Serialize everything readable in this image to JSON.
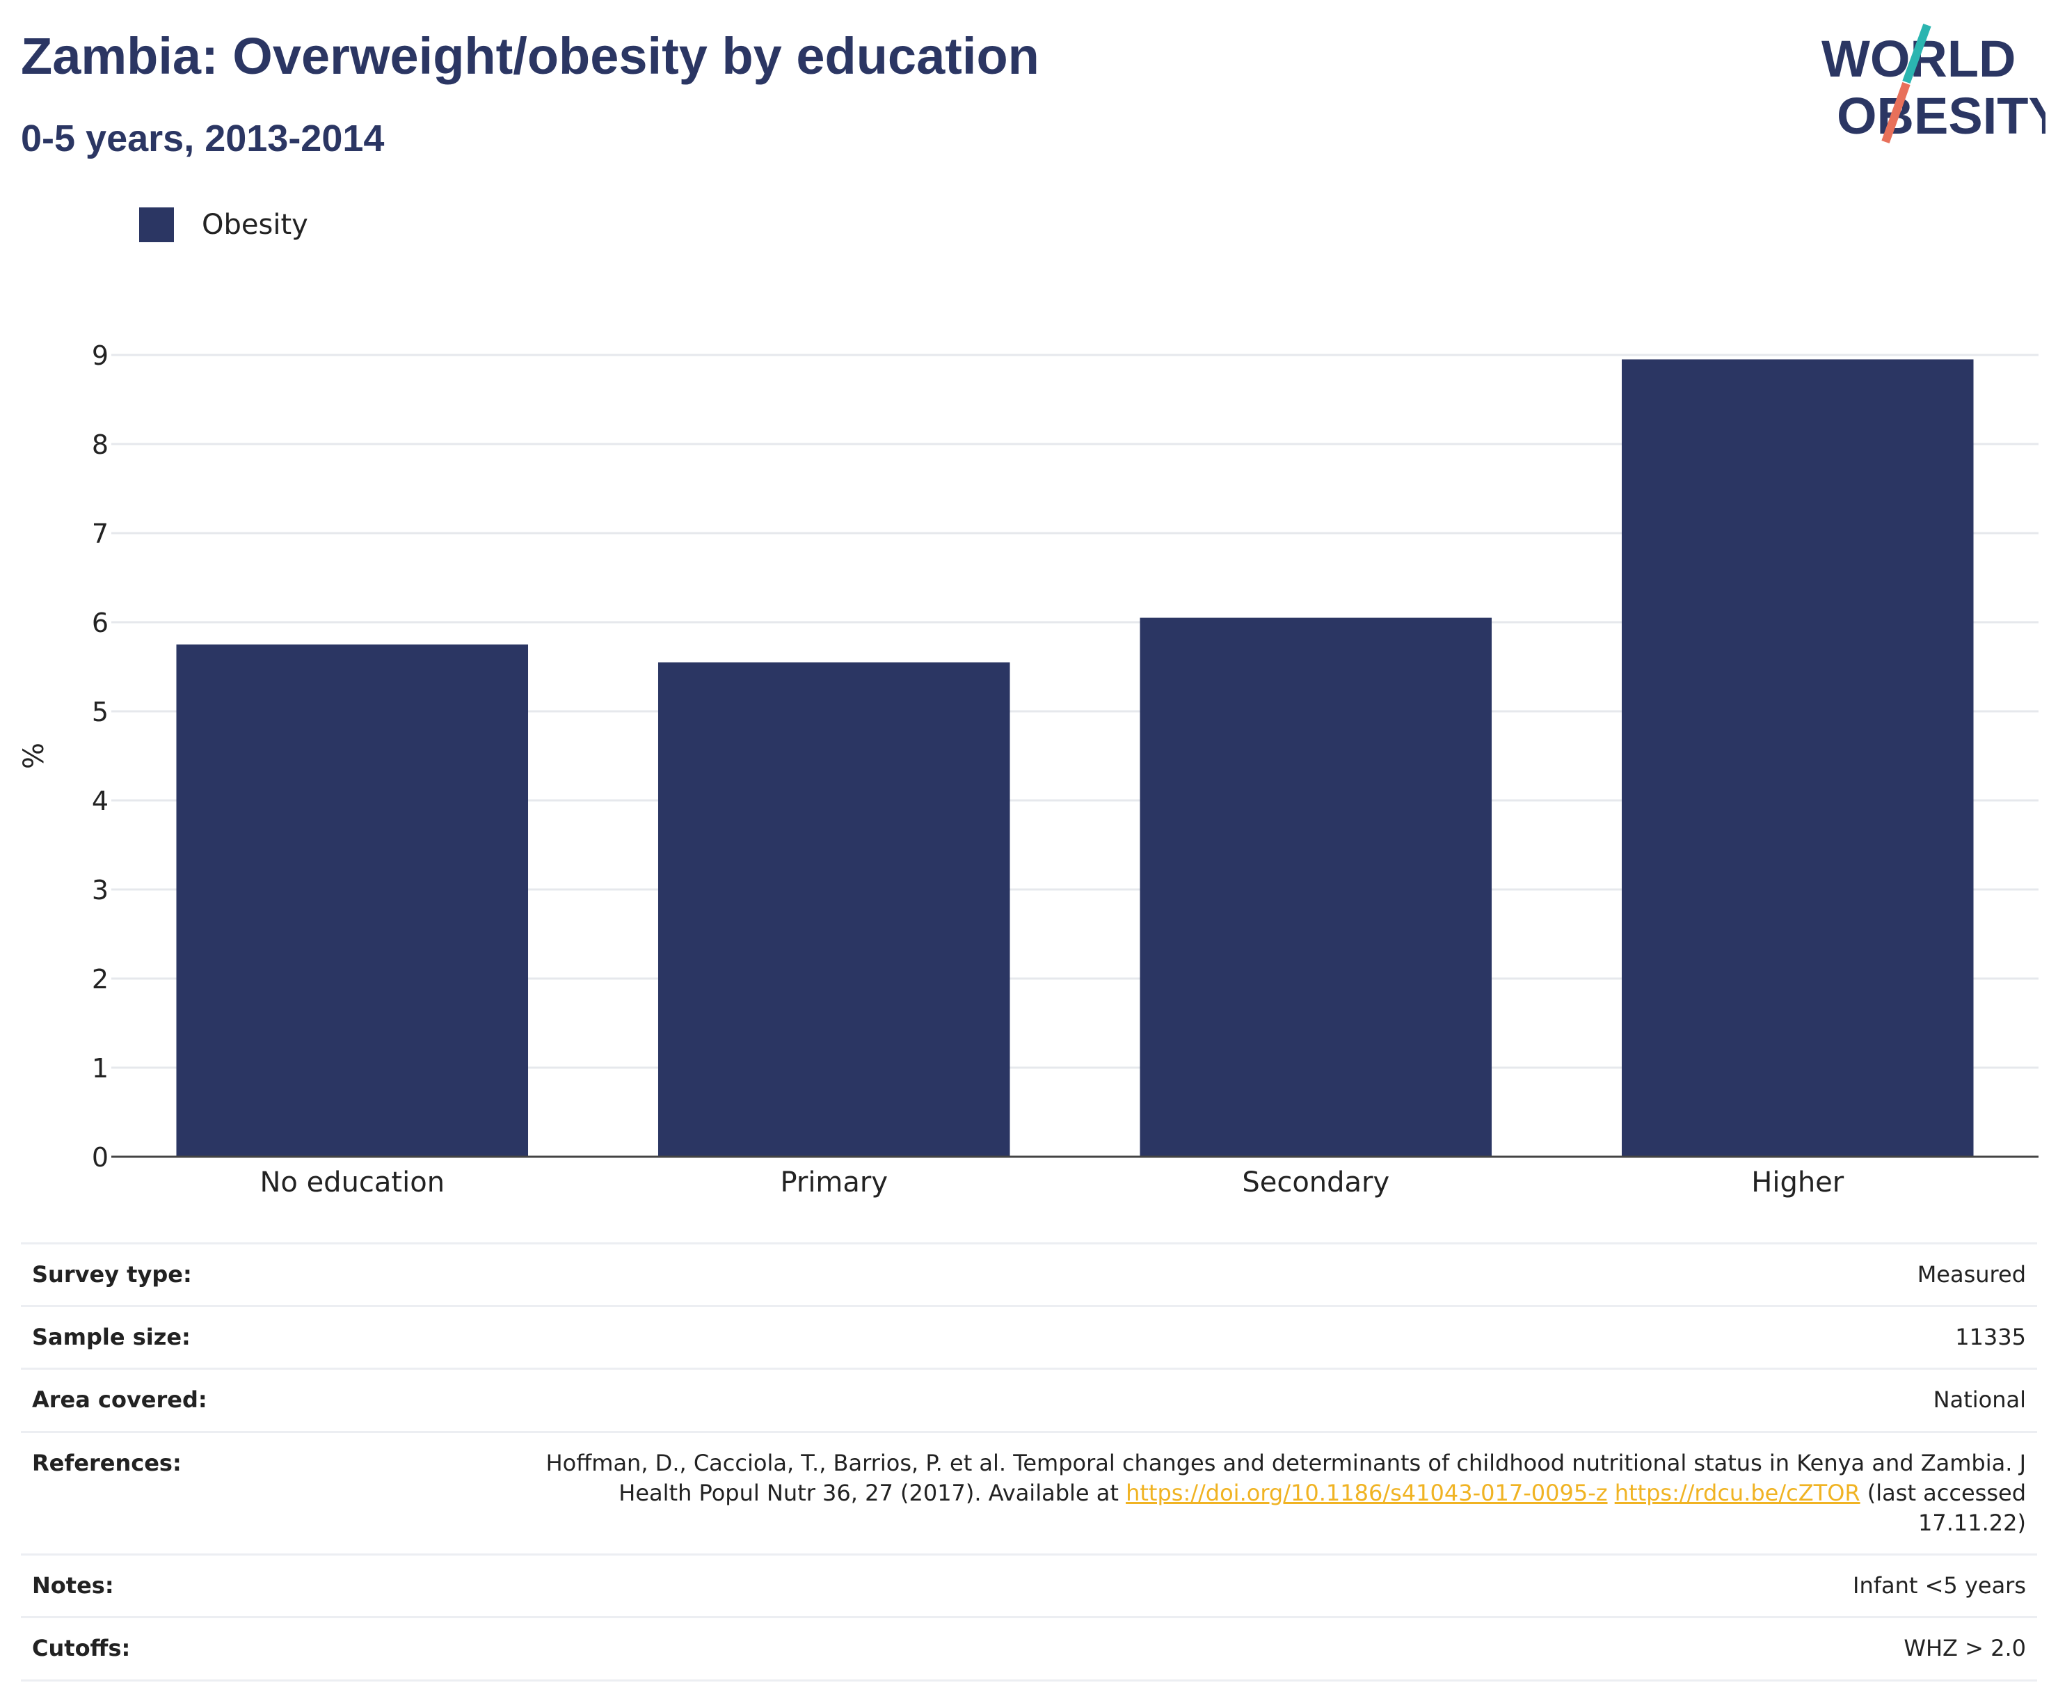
{
  "header": {
    "title": "Zambia: Overweight/obesity by education",
    "subtitle": "0-5 years, 2013-2014"
  },
  "logo": {
    "line1": "WORLD",
    "line2": "OBESITY",
    "colors": {
      "navy": "#2b3663",
      "teal": "#2bb5b0",
      "coral": "#e8705a"
    }
  },
  "legend": {
    "label": "Obesity",
    "color": "#2b3663"
  },
  "chart_data": {
    "type": "bar",
    "categories": [
      "No education",
      "Primary",
      "Secondary",
      "Higher"
    ],
    "series": [
      {
        "name": "Obesity",
        "values": [
          5.75,
          5.55,
          6.05,
          8.95
        ],
        "color": "#2b3663"
      }
    ],
    "title": "Zambia: Overweight/obesity by education",
    "subtitle": "0-5 years, 2013-2014",
    "xlabel": "",
    "ylabel": "%",
    "ylim": [
      0,
      9
    ],
    "yticks": [
      0,
      1,
      2,
      3,
      4,
      5,
      6,
      7,
      8,
      9
    ],
    "grid": true,
    "legend_position": "top-left"
  },
  "meta": {
    "survey_type": {
      "label": "Survey type:",
      "value": "Measured"
    },
    "sample_size": {
      "label": "Sample size:",
      "value": "11335"
    },
    "area_covered": {
      "label": "Area covered:",
      "value": "National"
    },
    "references": {
      "label": "References:",
      "text_line1": "Hoffman, D., Cacciola, T., Barrios, P. et al. Temporal changes and determinants of childhood nutritional status in Kenya and Zambia. J",
      "text_line2": "Health Popul Nutr 36, 27 (2017). Available at",
      "link1": "https://doi.org/10.1186/s41043-017-0095-z",
      "link2": "https://rdcu.be/cZTOR",
      "text_after": "(last accessed",
      "text_line3": "17.11.22)"
    },
    "notes": {
      "label": "Notes:",
      "value": "Infant <5 years"
    },
    "cutoffs": {
      "label": "Cutoffs:",
      "value": "WHZ > 2.0"
    }
  }
}
